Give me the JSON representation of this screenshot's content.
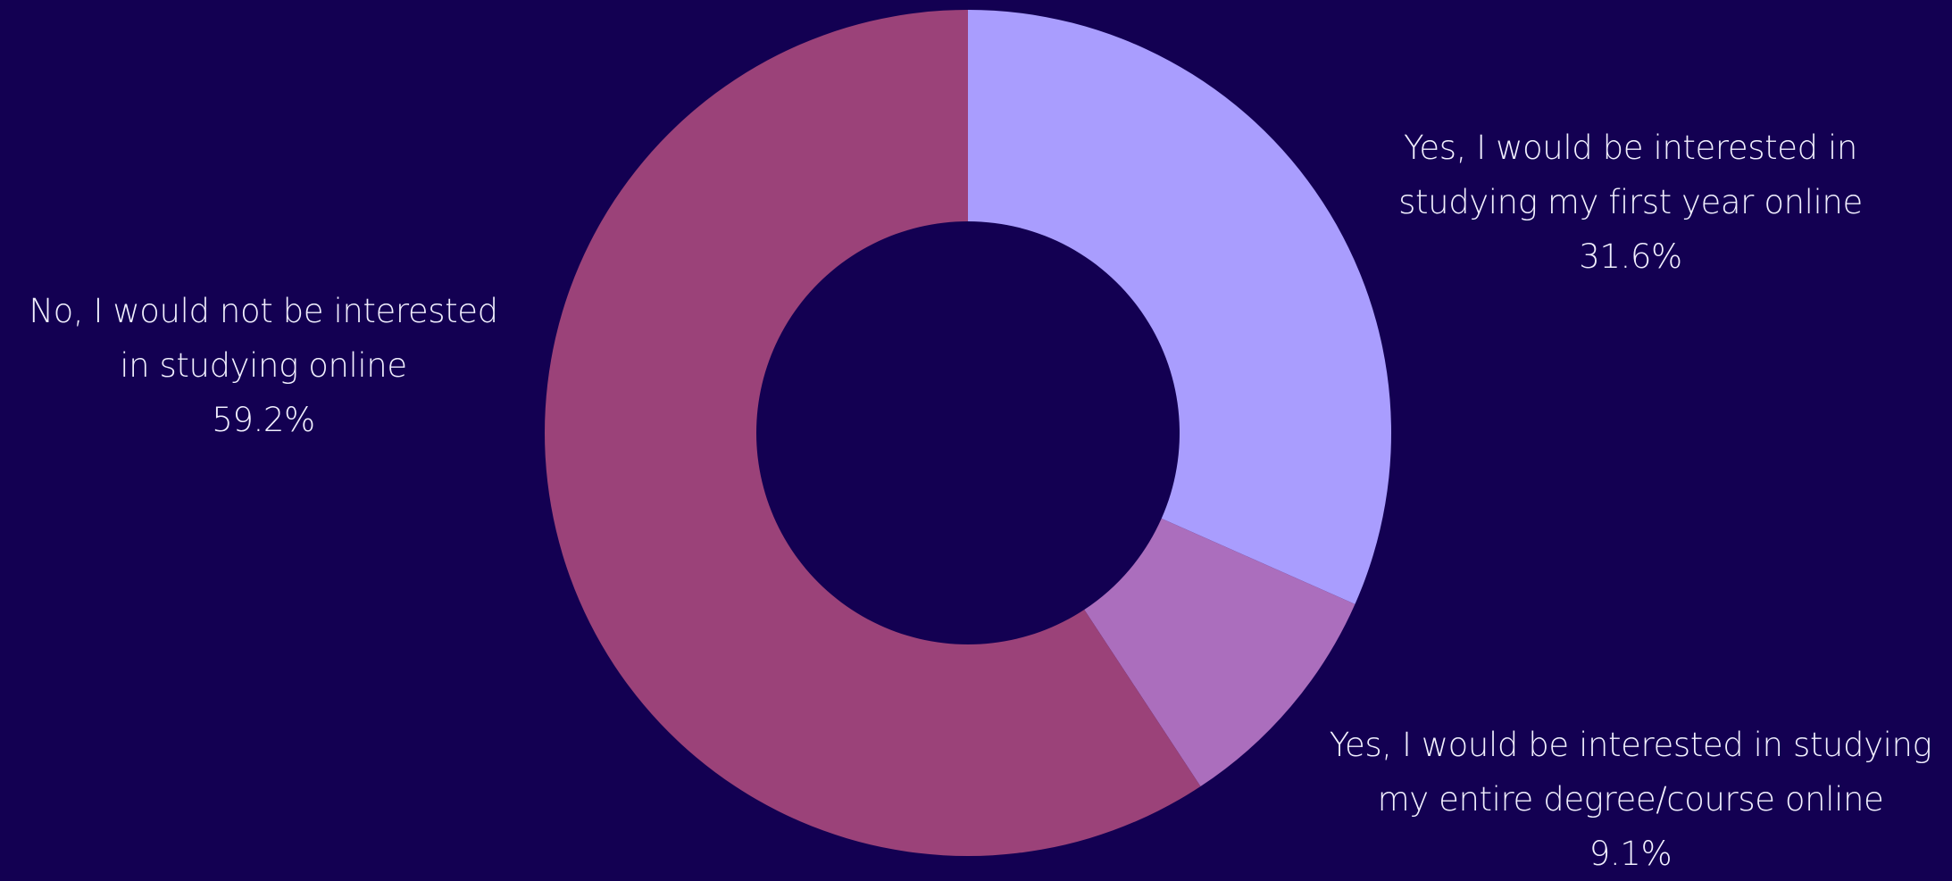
{
  "chart_data": {
    "type": "pie",
    "variant": "donut",
    "background_color": "#130052",
    "label_color": "#f2f0ff",
    "slices": [
      {
        "label_lines": [
          "Yes, I would be interested in",
          "studying my first year online"
        ],
        "value": 31.6,
        "value_label": "31.6%",
        "color": "#a99dfe"
      },
      {
        "label_lines": [
          "Yes, I would be interested in studying",
          "my entire degree/course online"
        ],
        "value": 9.1,
        "value_label": "9.1%",
        "color": "#ab6ebd"
      },
      {
        "label_lines": [
          "No, I would not be interested",
          "in studying online"
        ],
        "value": 59.2,
        "value_label": "59.2%",
        "color": "#9b4279"
      }
    ]
  }
}
